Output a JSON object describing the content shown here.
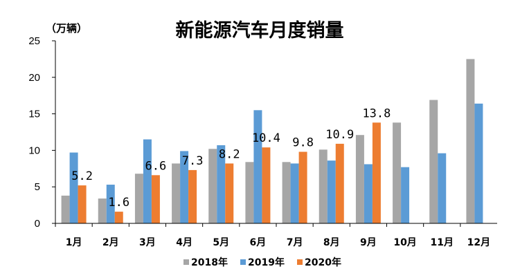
{
  "chart_data": {
    "type": "bar",
    "title": "新能源汽车月度销量",
    "unit_label": "（万辆）",
    "categories": [
      "1月",
      "2月",
      "3月",
      "4月",
      "5月",
      "6月",
      "7月",
      "8月",
      "9月",
      "10月",
      "11月",
      "12月"
    ],
    "series": [
      {
        "name": "2018年",
        "color": "#a6a6a6",
        "values": [
          3.8,
          3.4,
          6.8,
          8.2,
          10.2,
          8.4,
          8.4,
          10.1,
          12.1,
          13.8,
          16.9,
          22.5
        ]
      },
      {
        "name": "2019年",
        "color": "#5b9bd5",
        "values": [
          9.7,
          5.3,
          11.5,
          9.9,
          10.7,
          15.5,
          8.2,
          8.6,
          8.1,
          7.7,
          9.6,
          16.4
        ]
      },
      {
        "name": "2020年",
        "color": "#ed7d31",
        "values": [
          5.2,
          1.6,
          6.6,
          7.3,
          8.2,
          10.4,
          9.8,
          10.9,
          13.8,
          null,
          null,
          null
        ]
      }
    ],
    "data_labels": [
      "5.2",
      "1.6",
      "6.6",
      "7.3",
      "8.2",
      "10.4",
      "9.8",
      "10.9",
      "13.8"
    ],
    "ylim": [
      0,
      25
    ],
    "yticks": [
      "0",
      "5",
      "10",
      "15",
      "20",
      "25"
    ],
    "grid": false,
    "legend_position": "bottom"
  }
}
